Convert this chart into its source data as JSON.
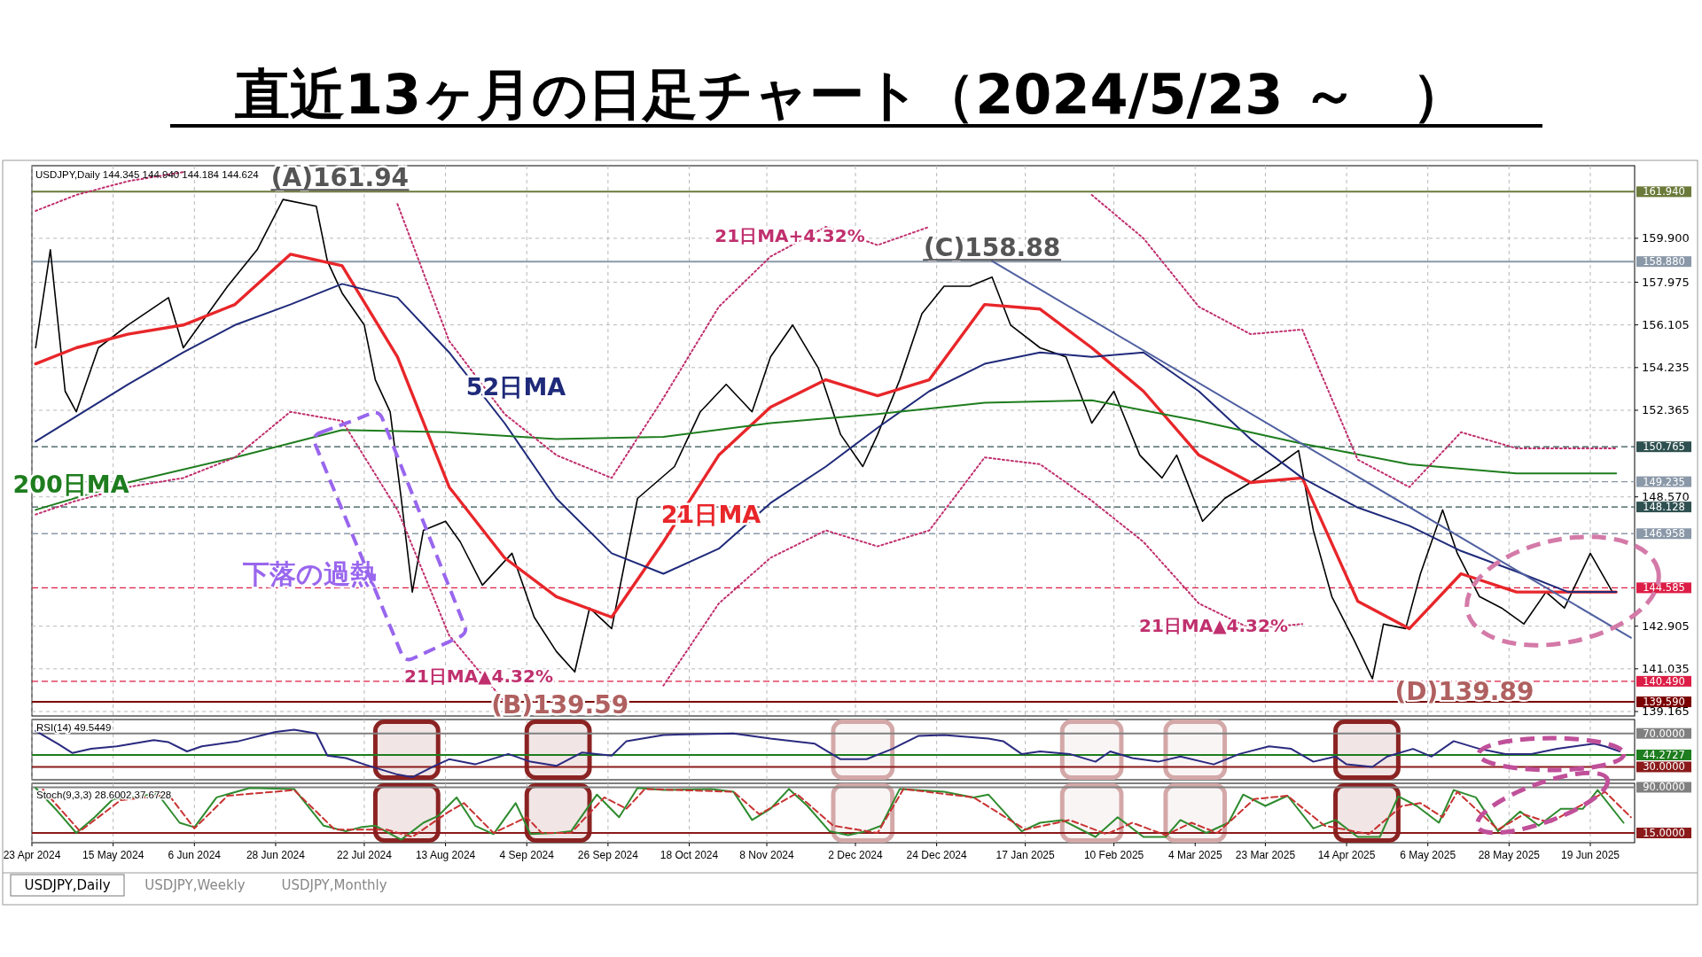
{
  "chart_data": [
    {
      "type": "line",
      "title": "直近13ヶ月の日足チャート（2024/5/23 ～　）",
      "subtitle": "USDJPY,Daily  144.345 144.940 144.184 144.624",
      "xlim": [
        "2024-04-23",
        "2025-07-01"
      ],
      "ylim": [
        138.97,
        163.08
      ],
      "grid": true,
      "tick_labels": "y",
      "xticks": [
        {
          "value": "2024-04-23",
          "label": null
        },
        {
          "value": "2024-05-15",
          "label": null
        },
        {
          "value": "2024-06-06",
          "label": null
        },
        {
          "value": "2024-06-28",
          "label": null
        },
        {
          "value": "2024-07-22",
          "label": null
        },
        {
          "value": "2024-08-13",
          "label": null
        },
        {
          "value": "2024-09-04",
          "label": null
        },
        {
          "value": "2024-09-26",
          "label": null
        },
        {
          "value": "2024-10-18",
          "label": null
        },
        {
          "value": "2024-11-08",
          "label": null
        },
        {
          "value": "2024-12-02",
          "label": null
        },
        {
          "value": "2024-12-24",
          "label": null
        },
        {
          "value": "2025-01-17",
          "label": null
        },
        {
          "value": "2025-02-10",
          "label": null
        },
        {
          "value": "2025-03-04",
          "label": null
        },
        {
          "value": "2025-03-23",
          "label": null
        },
        {
          "value": "2025-04-14",
          "label": null
        },
        {
          "value": "2025-05-06",
          "label": null
        },
        {
          "value": "2025-05-28",
          "label": null
        },
        {
          "value": "2025-06-19",
          "label": null
        }
      ],
      "yticks": [
        139.165,
        141.035,
        142.905,
        {
          "value": 148.57,
          "label": "148.570"
        },
        152.365,
        154.235,
        156.105,
        157.975,
        {
          "value": 159.9,
          "label": "159.900"
        }
      ],
      "ref_lines": [
        {
          "axis": "y",
          "value": 161.94,
          "label": "161.940",
          "color": "#6b7a3a",
          "line_style": "solid"
        },
        {
          "axis": "y",
          "value": 158.88,
          "label": "158.880",
          "color": "#8a98a8",
          "line_style": "solid"
        },
        {
          "axis": "y",
          "value": 150.765,
          "label": "150.765",
          "color": "#2f5050",
          "line_style": "dashed"
        },
        {
          "axis": "y",
          "value": 149.235,
          "label": "149.235",
          "color": "#8a98a8",
          "line_style": "dashed"
        },
        {
          "axis": "y",
          "value": 148.128,
          "label": "148.128",
          "color": "#2f5050",
          "line_style": "dashed"
        },
        {
          "axis": "y",
          "value": 146.958,
          "label": "146.958",
          "color": "#8a98a8",
          "line_style": "dashed"
        },
        {
          "axis": "y",
          "value": 144.585,
          "label": "144.585",
          "color": "#dc1e46",
          "line_style": "dashed"
        },
        {
          "axis": "y",
          "value": 140.49,
          "label": "140.490",
          "color": "#dc1e46",
          "line_style": "dashed"
        },
        {
          "axis": "y",
          "value": 139.59,
          "label": "139.590",
          "color": "#7a0000",
          "line_style": "solid"
        }
      ],
      "series": [
        {
          "color": "#000000",
          "line_style": "solid",
          "x": [
            "2024-04-24",
            "2024-04-28",
            "2024-05-02",
            "2024-05-05",
            "2024-05-11",
            "2024-05-19",
            "2024-05-30",
            "2024-06-03",
            "2024-06-15",
            "2024-06-23",
            "2024-06-30",
            "2024-07-09",
            "2024-07-12",
            "2024-07-16",
            "2024-07-22",
            "2024-07-25",
            "2024-07-29",
            "2024-08-01",
            "2024-08-04",
            "2024-08-07",
            "2024-08-13",
            "2024-08-17",
            "2024-08-23",
            "2024-08-31",
            "2024-09-06",
            "2024-09-12",
            "2024-09-17",
            "2024-09-21",
            "2024-09-27",
            "2024-10-04",
            "2024-10-14",
            "2024-10-21",
            "2024-10-28",
            "2024-11-04",
            "2024-11-09",
            "2024-11-15",
            "2024-11-22",
            "2024-11-28",
            "2024-12-04",
            "2024-12-08",
            "2024-12-14",
            "2024-12-20",
            "2024-12-26",
            "2025-01-02",
            "2025-01-08",
            "2025-01-13",
            "2025-01-21",
            "2025-01-28",
            "2025-02-04",
            "2025-02-10",
            "2025-02-17",
            "2025-02-23",
            "2025-02-27",
            "2025-03-06",
            "2025-03-12",
            "2025-03-19",
            "2025-03-26",
            "2025-04-01",
            "2025-04-05",
            "2025-04-10",
            "2025-04-16",
            "2025-04-21",
            "2025-04-24",
            "2025-04-30",
            "2025-05-04",
            "2025-05-10",
            "2025-05-14",
            "2025-05-20",
            "2025-05-26",
            "2025-06-01",
            "2025-06-07",
            "2025-06-12",
            "2025-06-19",
            "2025-06-25"
          ],
          "values": [
            155.1,
            159.4,
            153.2,
            152.3,
            155.1,
            156.1,
            157.3,
            155.1,
            157.8,
            159.4,
            161.6,
            161.3,
            158.9,
            157.5,
            156.1,
            153.7,
            152.3,
            148.5,
            144.4,
            147.1,
            147.5,
            146.6,
            144.7,
            146.1,
            143.3,
            141.8,
            140.9,
            143.7,
            142.8,
            148.5,
            149.9,
            152.3,
            153.5,
            152.3,
            154.7,
            156.1,
            154.2,
            151.3,
            149.9,
            151.3,
            153.7,
            156.6,
            157.8,
            157.8,
            158.2,
            156.1,
            155.1,
            154.7,
            151.8,
            153.2,
            150.4,
            149.4,
            150.4,
            147.5,
            148.5,
            149.2,
            149.9,
            150.6,
            147.1,
            144.2,
            142.3,
            140.6,
            143.0,
            142.8,
            145.2,
            148.0,
            146.1,
            144.2,
            143.7,
            143.0,
            144.4,
            143.7,
            146.1,
            144.4
          ]
        },
        {
          "name": "21日MA",
          "color": "#e8262a",
          "line_style": "solid",
          "x": [
            "2024-04-24",
            "2024-05-05",
            "2024-05-19",
            "2024-06-03",
            "2024-06-17",
            "2024-07-02",
            "2024-07-16",
            "2024-07-31",
            "2024-08-14",
            "2024-08-29",
            "2024-09-12",
            "2024-09-27",
            "2024-10-11",
            "2024-10-26",
            "2024-11-09",
            "2024-11-24",
            "2024-12-08",
            "2024-12-22",
            "2025-01-06",
            "2025-01-21",
            "2025-02-04",
            "2025-02-18",
            "2025-03-05",
            "2025-03-19",
            "2025-04-02",
            "2025-04-17",
            "2025-05-01",
            "2025-05-15",
            "2025-05-30",
            "2025-06-13",
            "2025-06-26"
          ],
          "values": [
            154.4,
            155.1,
            155.7,
            156.1,
            157.0,
            159.2,
            158.7,
            154.7,
            149.0,
            145.9,
            144.2,
            143.3,
            146.6,
            150.4,
            152.5,
            153.7,
            153.0,
            153.7,
            157.0,
            156.8,
            155.1,
            153.2,
            150.4,
            149.2,
            149.4,
            144.0,
            142.8,
            145.2,
            144.4,
            144.4,
            144.4
          ]
        },
        {
          "name": "52日MA",
          "color": "#1f2a7a",
          "line_style": "solid",
          "x": [
            "2024-04-24",
            "2024-05-05",
            "2024-05-19",
            "2024-06-03",
            "2024-06-17",
            "2024-07-02",
            "2024-07-16",
            "2024-07-31",
            "2024-08-14",
            "2024-08-29",
            "2024-09-12",
            "2024-09-27",
            "2024-10-11",
            "2024-10-26",
            "2024-11-09",
            "2024-11-24",
            "2024-12-08",
            "2024-12-22",
            "2025-01-06",
            "2025-01-21",
            "2025-02-04",
            "2025-02-18",
            "2025-03-05",
            "2025-03-19",
            "2025-04-02",
            "2025-04-17",
            "2025-05-01",
            "2025-05-15",
            "2025-05-30",
            "2025-06-13",
            "2025-06-26"
          ],
          "values": [
            151.0,
            152.1,
            153.5,
            154.9,
            156.1,
            157.0,
            157.9,
            157.3,
            154.9,
            151.8,
            148.5,
            146.1,
            145.2,
            146.3,
            148.3,
            149.9,
            151.6,
            153.2,
            154.4,
            154.9,
            154.7,
            154.9,
            153.2,
            151.1,
            149.4,
            148.1,
            147.3,
            146.2,
            145.3,
            144.4,
            144.4
          ]
        },
        {
          "name": "200日MA",
          "color": "#1e7d1e",
          "line_style": "solid",
          "x": [
            "2024-04-24",
            "2024-05-19",
            "2024-06-17",
            "2024-07-16",
            "2024-08-14",
            "2024-09-12",
            "2024-10-11",
            "2024-11-09",
            "2024-12-08",
            "2025-01-06",
            "2025-02-04",
            "2025-03-05",
            "2025-04-02",
            "2025-05-01",
            "2025-05-30",
            "2025-06-26"
          ],
          "values": [
            148.0,
            149.2,
            150.3,
            151.5,
            151.4,
            151.1,
            151.2,
            151.8,
            152.2,
            152.7,
            152.8,
            151.9,
            150.9,
            150.0,
            149.6,
            149.6
          ]
        },
        {
          "color": "#c0306e",
          "line_style": "dotted",
          "x": [
            "2024-04-24",
            "2024-05-05",
            "2024-05-19",
            "2024-06-03"
          ],
          "values": [
            161.1,
            161.8,
            162.4,
            162.8
          ]
        },
        {
          "name": "21日MA+4.32%",
          "color": "#c0306e",
          "line_style": "dotted",
          "x": [
            "2024-07-31",
            "2024-08-14",
            "2024-08-29",
            "2024-09-12",
            "2024-09-27",
            "2024-10-11",
            "2024-10-26",
            "2024-11-09",
            "2024-11-24",
            "2024-12-08",
            "2024-12-22"
          ],
          "values": [
            161.4,
            155.4,
            152.2,
            150.4,
            149.4,
            152.9,
            156.9,
            159.1,
            160.4,
            159.6,
            160.4
          ]
        },
        {
          "color": "#c0306e",
          "line_style": "dotted",
          "x": [
            "2025-02-04",
            "2025-02-18",
            "2025-03-05",
            "2025-03-19",
            "2025-04-02",
            "2025-04-17",
            "2025-05-01",
            "2025-05-15",
            "2025-05-30",
            "2025-06-13",
            "2025-06-26"
          ],
          "values": [
            161.8,
            159.9,
            156.9,
            155.7,
            155.9,
            150.2,
            149.0,
            151.4,
            150.7,
            150.7,
            150.7
          ]
        },
        {
          "name": "21日MA▲4.32%",
          "color": "#c0306e",
          "line_style": "dotted",
          "x": [
            "2024-04-24",
            "2024-05-05",
            "2024-05-19",
            "2024-06-03",
            "2024-06-17",
            "2024-07-02",
            "2024-07-16",
            "2024-07-31",
            "2024-08-14",
            "2024-08-29"
          ],
          "values": [
            147.8,
            148.4,
            149.0,
            149.4,
            150.3,
            152.3,
            151.9,
            148.0,
            142.5,
            139.6
          ]
        },
        {
          "color": "#c0306e",
          "line_style": "dotted",
          "x": [
            "2024-10-11",
            "2024-10-26",
            "2024-11-09",
            "2024-11-24",
            "2024-12-08",
            "2024-12-22",
            "2025-01-06",
            "2025-01-21",
            "2025-02-04",
            "2025-02-18",
            "2025-03-05",
            "2025-03-19",
            "2025-04-02"
          ],
          "values": [
            140.3,
            143.9,
            145.9,
            147.1,
            146.4,
            147.1,
            150.3,
            150.0,
            148.4,
            146.6,
            143.9,
            142.8,
            143.0
          ]
        },
        {
          "color": "#5060a0",
          "line_style": "solid",
          "x": [
            "2025-01-08",
            "2025-06-30"
          ],
          "values": [
            158.9,
            142.4
          ]
        }
      ],
      "annotations": [
        {
          "text": "(A)161.94",
          "x": "2024-07-01",
          "y": 161.94
        },
        {
          "text": "(B)139.59",
          "x": "2024-09-13",
          "y": 139.59
        },
        {
          "text": "(C)158.88",
          "x": "2025-01-08",
          "y": 158.88
        },
        "(D)139.89",
        "21日MA▲4.32%",
        "下落の過熱"
      ]
    },
    {
      "type": "line",
      "title": "RSI(14) 49.5449",
      "xlim": [
        "2024-04-23",
        "2025-07-01"
      ],
      "ylim": [
        14.6,
        86.6
      ],
      "grid": true,
      "tick_labels": false,
      "xticks": [
        {
          "value": "2024-04-23",
          "label": null
        },
        {
          "value": "2024-05-15",
          "label": null
        },
        {
          "value": "2024-06-06",
          "label": null
        },
        {
          "value": "2024-06-28",
          "label": null
        },
        {
          "value": "2024-07-22",
          "label": null
        },
        {
          "value": "2024-08-13",
          "label": null
        },
        {
          "value": "2024-09-04",
          "label": null
        },
        {
          "value": "2024-09-26",
          "label": null
        },
        {
          "value": "2024-10-18",
          "label": null
        },
        {
          "value": "2024-11-08",
          "label": null
        },
        {
          "value": "2024-12-02",
          "label": null
        },
        {
          "value": "2024-12-24",
          "label": null
        },
        {
          "value": "2025-01-17",
          "label": null
        },
        {
          "value": "2025-02-10",
          "label": null
        },
        {
          "value": "2025-03-04",
          "label": null
        },
        {
          "value": "2025-03-23",
          "label": null
        },
        {
          "value": "2025-04-14",
          "label": null
        },
        {
          "value": "2025-05-06",
          "label": null
        },
        {
          "value": "2025-05-28",
          "label": null
        },
        {
          "value": "2025-06-19",
          "label": null
        }
      ],
      "bands": [
        {
          "axis": "x",
          "from": "2024-07-25",
          "to": "2024-08-11",
          "color": "#8b2323"
        },
        {
          "axis": "x",
          "from": "2024-09-04",
          "to": "2024-09-21",
          "color": "#8b2323"
        },
        {
          "axis": "x",
          "from": "2024-11-26",
          "to": "2024-12-12",
          "color": "#d4a8a8"
        },
        {
          "axis": "x",
          "from": "2025-01-27",
          "to": "2025-02-12",
          "color": "#d4a8a8"
        },
        {
          "axis": "x",
          "from": "2025-02-24",
          "to": "2025-03-12",
          "color": "#d4a8a8"
        },
        {
          "axis": "x",
          "from": "2025-04-11",
          "to": "2025-04-28",
          "color": "#8b2323"
        }
      ],
      "ref_lines": [
        {
          "axis": "y",
          "value": 70,
          "label": "70.0000",
          "color": "#808080",
          "line_style": "solid"
        },
        {
          "axis": "y",
          "value": 44.2727,
          "label": "44.2727",
          "color": "#1e7d1e",
          "line_style": "solid"
        },
        {
          "axis": "y",
          "value": 30,
          "label": "30.0000",
          "color": "#8b1a1a",
          "line_style": "solid"
        }
      ],
      "series": [
        {
          "color": "#2a2a80",
          "line_style": "solid",
          "x": [
            "2024-04-24",
            "2024-04-30",
            "2024-05-04",
            "2024-05-09",
            "2024-05-16",
            "2024-05-26",
            "2024-05-30",
            "2024-06-04",
            "2024-06-08",
            "2024-06-18",
            "2024-06-28",
            "2024-07-03",
            "2024-07-09",
            "2024-07-12",
            "2024-07-17",
            "2024-07-22",
            "2024-07-31",
            "2024-08-04",
            "2024-08-10",
            "2024-08-14",
            "2024-08-21",
            "2024-08-30",
            "2024-09-05",
            "2024-09-12",
            "2024-09-19",
            "2024-09-27",
            "2024-10-01",
            "2024-10-11",
            "2024-10-30",
            "2024-11-09",
            "2024-11-21",
            "2024-11-28",
            "2024-12-05",
            "2024-12-12",
            "2024-12-19",
            "2024-12-26",
            "2025-01-07",
            "2025-01-11",
            "2025-01-16",
            "2025-01-21",
            "2025-01-29",
            "2025-02-05",
            "2025-02-09",
            "2025-02-15",
            "2025-02-22",
            "2025-02-28",
            "2025-03-09",
            "2025-03-16",
            "2025-03-24",
            "2025-03-30",
            "2025-04-05",
            "2025-04-11",
            "2025-04-14",
            "2025-04-21",
            "2025-04-25",
            "2025-05-02",
            "2025-05-07",
            "2025-05-13",
            "2025-05-20",
            "2025-05-27",
            "2025-06-03",
            "2025-06-10",
            "2025-06-20",
            "2025-06-23",
            "2025-06-27"
          ],
          "values": [
            73,
            57.7,
            46.6,
            51.5,
            54.6,
            62,
            59.5,
            48.5,
            54.6,
            60.8,
            71.8,
            74.3,
            70,
            43.5,
            40.5,
            33,
            20.8,
            17.7,
            31.2,
            39.2,
            33,
            45.4,
            36.2,
            31.2,
            47.2,
            43.5,
            60.8,
            68.2,
            70,
            63.8,
            57.7,
            39.2,
            39.2,
            51.5,
            66.9,
            68.2,
            63.8,
            60.8,
            45.4,
            48.5,
            45.4,
            36.2,
            48.5,
            40.5,
            36.2,
            42.3,
            33,
            45.4,
            54.6,
            51.5,
            36.2,
            42.3,
            33,
            30,
            42.3,
            51.5,
            42.3,
            60.8,
            51.5,
            45.4,
            45.4,
            51.5,
            57.7,
            54.6,
            48.5
          ]
        }
      ]
    },
    {
      "type": "line",
      "title": "Stoch(9,3,3) 28.6002 37.6728",
      "xlim": [
        "2024-04-23",
        "2025-07-01"
      ],
      "ylim": [
        -1,
        96.5
      ],
      "grid": true,
      "tick_labels": "x",
      "xticks": [
        {
          "value": "2024-04-23",
          "label": "23 Apr 2024"
        },
        {
          "value": "2024-05-15",
          "label": "15 May 2024"
        },
        {
          "value": "2024-06-06",
          "label": "6 Jun 2024"
        },
        {
          "value": "2024-06-28",
          "label": "28 Jun 2024"
        },
        {
          "value": "2024-07-22",
          "label": "22 Jul 2024"
        },
        {
          "value": "2024-08-13",
          "label": "13 Aug 2024"
        },
        {
          "value": "2024-09-04",
          "label": "4 Sep 2024"
        },
        {
          "value": "2024-09-26",
          "label": "26 Sep 2024"
        },
        {
          "value": "2024-10-18",
          "label": "18 Oct 2024"
        },
        {
          "value": "2024-11-08",
          "label": "8 Nov 2024"
        },
        {
          "value": "2024-12-02",
          "label": "2 Dec 2024"
        },
        {
          "value": "2024-12-24",
          "label": "24 Dec 2024"
        },
        {
          "value": "2025-01-17",
          "label": "17 Jan 2025"
        },
        {
          "value": "2025-02-10",
          "label": "10 Feb 2025"
        },
        {
          "value": "2025-03-04",
          "label": "4 Mar 2025"
        },
        {
          "value": "2025-03-23",
          "label": "23 Mar 2025"
        },
        {
          "value": "2025-04-14",
          "label": "14 Apr 2025"
        },
        {
          "value": "2025-05-06",
          "label": "6 May 2025"
        },
        {
          "value": "2025-05-28",
          "label": "28 May 2025"
        },
        {
          "value": "2025-06-19",
          "label": "19 Jun 2025"
        }
      ],
      "bands": [
        {
          "axis": "x",
          "from": "2024-07-25",
          "to": "2024-08-11",
          "color": "#8b2323"
        },
        {
          "axis": "x",
          "from": "2024-09-04",
          "to": "2024-09-21",
          "color": "#8b2323"
        },
        {
          "axis": "x",
          "from": "2024-11-26",
          "to": "2024-12-12",
          "color": "#d4a8a8"
        },
        {
          "axis": "x",
          "from": "2025-01-27",
          "to": "2025-02-12",
          "color": "#d4a8a8"
        },
        {
          "axis": "x",
          "from": "2025-02-24",
          "to": "2025-03-12",
          "color": "#d4a8a8"
        },
        {
          "axis": "x",
          "from": "2025-04-11",
          "to": "2025-04-28",
          "color": "#8b2323"
        }
      ],
      "ref_lines": [
        {
          "axis": "y",
          "value": 90,
          "label": "90.0000",
          "color": "#808080",
          "line_style": "solid"
        },
        {
          "axis": "y",
          "value": 15,
          "label": "15.0000",
          "color": "#8b1a1a",
          "line_style": "solid"
        }
      ],
      "series": [
        {
          "color": "#2e8b2e",
          "line_style": "solid",
          "x": [
            "2024-04-24",
            "2024-04-30",
            "2024-05-05",
            "2024-05-10",
            "2024-05-15",
            "2024-05-20",
            "2024-05-27",
            "2024-06-02",
            "2024-06-06",
            "2024-06-12",
            "2024-06-21",
            "2024-07-03",
            "2024-07-11",
            "2024-07-17",
            "2024-07-21",
            "2024-07-25",
            "2024-08-01",
            "2024-08-07",
            "2024-08-11",
            "2024-08-16",
            "2024-08-21",
            "2024-08-26",
            "2024-09-01",
            "2024-09-05",
            "2024-09-12",
            "2024-09-16",
            "2024-09-23",
            "2024-09-29",
            "2024-10-04",
            "2024-10-11",
            "2024-10-24",
            "2024-10-30",
            "2024-11-04",
            "2024-11-09",
            "2024-11-14",
            "2024-11-19",
            "2024-11-25",
            "2024-11-30",
            "2024-12-05",
            "2024-12-09",
            "2024-12-14",
            "2024-12-26",
            "2025-01-03",
            "2025-01-07",
            "2025-01-16",
            "2025-01-21",
            "2025-01-27",
            "2025-02-05",
            "2025-02-11",
            "2025-02-18",
            "2025-02-24",
            "2025-02-28",
            "2025-03-07",
            "2025-03-13",
            "2025-03-17",
            "2025-03-23",
            "2025-03-29",
            "2025-04-05",
            "2025-04-11",
            "2025-04-17",
            "2025-04-23",
            "2025-04-28",
            "2025-05-03",
            "2025-05-09",
            "2025-05-13",
            "2025-05-19",
            "2025-05-25",
            "2025-05-31",
            "2025-06-05",
            "2025-06-11",
            "2025-06-17",
            "2025-06-21",
            "2025-06-28"
          ],
          "values": [
            89,
            50.2,
            15,
            40.9,
            70.6,
            73.3,
            79.8,
            31.7,
            24.3,
            73.3,
            89,
            87.2,
            27,
            17.8,
            24.3,
            27,
            3.9,
            31.7,
            42.8,
            73.3,
            27,
            13.1,
            64.1,
            13.1,
            15,
            17.8,
            78,
            40.9,
            89,
            85.4,
            87.2,
            82.6,
            36.3,
            54.8,
            87.2,
            59.4,
            17.8,
            11.3,
            17.8,
            27,
            87.2,
            82.6,
            73.3,
            78,
            17.8,
            31.7,
            36.3,
            8.5,
            40.9,
            8.5,
            8.5,
            36.3,
            15,
            31.7,
            78,
            59.4,
            76.1,
            22.4,
            36.3,
            8.5,
            8.5,
            75.2,
            59.4,
            31.7,
            85.4,
            73.3,
            17.8,
            50.2,
            27,
            54.8,
            54.8,
            85.4,
            31.7
          ]
        },
        {
          "color": "#c83232",
          "line_style": "dashed",
          "x": [
            "2024-04-26",
            "2024-05-06",
            "2024-05-17",
            "2024-05-30",
            "2024-06-06",
            "2024-06-15",
            "2024-07-03",
            "2024-07-14",
            "2024-07-28",
            "2024-08-04",
            "2024-08-14",
            "2024-08-18",
            "2024-08-26",
            "2024-09-04",
            "2024-09-08",
            "2024-09-16",
            "2024-09-25",
            "2024-10-01",
            "2024-10-06",
            "2024-10-30",
            "2024-11-06",
            "2024-11-16",
            "2024-11-26",
            "2024-12-08",
            "2024-12-15",
            "2025-01-03",
            "2025-01-17",
            "2025-01-29",
            "2025-02-08",
            "2025-02-15",
            "2025-02-24",
            "2025-03-03",
            "2025-03-10",
            "2025-03-20",
            "2025-03-29",
            "2025-04-08",
            "2025-04-20",
            "2025-04-29",
            "2025-05-04",
            "2025-05-10",
            "2025-05-14",
            "2025-05-25",
            "2025-06-01",
            "2025-06-08",
            "2025-06-23",
            "2025-06-30"
          ],
          "values": [
            86.3,
            17.8,
            68.7,
            78,
            22.4,
            76.1,
            85.4,
            20.6,
            20.6,
            8.5,
            50.2,
            64.1,
            15,
            40.9,
            15,
            15,
            73.3,
            54.8,
            87.2,
            82.6,
            45.6,
            79.8,
            27,
            15,
            87.2,
            73.3,
            20.6,
            36.3,
            13.1,
            31.7,
            11.3,
            31.7,
            15,
            70.6,
            76.1,
            27,
            13.1,
            59.4,
            64.1,
            40.9,
            82.6,
            20.6,
            45.6,
            31.7,
            82.6,
            40.9
          ]
        }
      ],
      "annotations": [
        "USDJPY,Daily",
        "USDJPY,Weekly",
        "USDJPY,Monthly"
      ]
    }
  ]
}
